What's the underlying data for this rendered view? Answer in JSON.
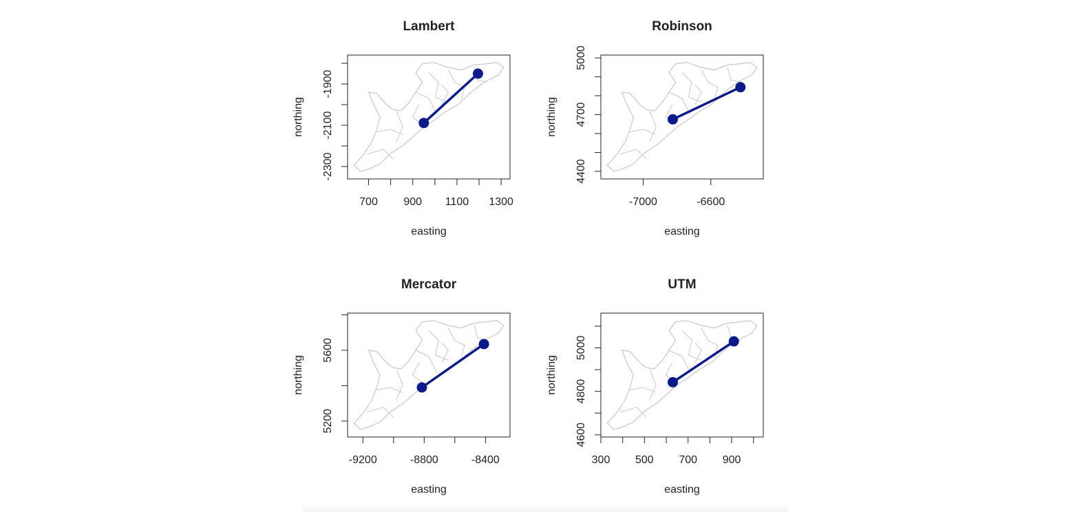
{
  "chart_data": [
    {
      "type": "scatter",
      "title": "Lambert",
      "xlabel": "easting",
      "ylabel": "northing",
      "xlim": [
        605,
        1340
      ],
      "ylim": [
        -2360,
        -1760
      ],
      "x_ticks": [
        700,
        800,
        900,
        1000,
        1100,
        1200,
        1300
      ],
      "x_tick_labels": [
        "700",
        "",
        "900",
        "",
        "1100",
        "",
        "1300"
      ],
      "y_ticks": [
        -1800,
        -1900,
        -2000,
        -2100,
        -2200,
        -2300
      ],
      "y_tick_labels": [
        "",
        "-1900",
        "",
        "-2100",
        "",
        "-2300"
      ],
      "series": [
        {
          "x": [
            950,
            1195
          ],
          "y": [
            -2089,
            -1850
          ]
        }
      ],
      "colors": {
        "route": "#0d1a8a",
        "boundaries": "#c8c8c8"
      },
      "grid": false
    },
    {
      "type": "scatter",
      "title": "Robinson",
      "xlabel": "easting",
      "ylabel": "northing",
      "xlim": [
        -7250,
        -6290
      ],
      "ylim": [
        4360,
        5015
      ],
      "x_ticks": [
        -7000,
        -6600
      ],
      "x_tick_labels": [
        "-7000",
        "-6600"
      ],
      "y_ticks": [
        4400,
        4500,
        4600,
        4700,
        4800,
        4900,
        5000
      ],
      "y_tick_labels": [
        "4400",
        "",
        "",
        "4700",
        "",
        "",
        "5000"
      ],
      "series": [
        {
          "x": [
            -6825,
            -6425
          ],
          "y": [
            4675,
            4845
          ]
        }
      ],
      "colors": {
        "route": "#0d1a8a",
        "boundaries": "#c8c8c8"
      },
      "grid": false
    },
    {
      "type": "scatter",
      "title": "Mercator",
      "xlabel": "easting",
      "ylabel": "northing",
      "xlim": [
        -9300,
        -8240
      ],
      "ylim": [
        5110,
        5810
      ],
      "x_ticks": [
        -9200,
        -9000,
        -8800,
        -8600,
        -8400
      ],
      "x_tick_labels": [
        "-9200",
        "",
        "-8800",
        "",
        "-8400"
      ],
      "y_ticks": [
        5200,
        5400,
        5600,
        5800
      ],
      "y_tick_labels": [
        "5200",
        "",
        "5600",
        ""
      ],
      "series": [
        {
          "x": [
            -8815,
            -8410
          ],
          "y": [
            5390,
            5635
          ]
        }
      ],
      "colors": {
        "route": "#0d1a8a",
        "boundaries": "#c8c8c8"
      },
      "grid": false
    },
    {
      "type": "scatter",
      "title": "UTM",
      "xlabel": "easting",
      "ylabel": "northing",
      "xlim": [
        300,
        1045
      ],
      "ylim": [
        4590,
        5160
      ],
      "x_ticks": [
        300,
        400,
        500,
        600,
        700,
        800,
        900,
        1000
      ],
      "x_tick_labels": [
        "300",
        "",
        "500",
        "",
        "700",
        "",
        "900",
        ""
      ],
      "y_ticks": [
        4600,
        4700,
        4800,
        4900,
        5000,
        5100
      ],
      "y_tick_labels": [
        "4600",
        "",
        "4800",
        "",
        "5000",
        ""
      ],
      "series": [
        {
          "x": [
            630,
            910
          ],
          "y": [
            4842,
            5030
          ]
        }
      ],
      "colors": {
        "route": "#0d1a8a",
        "boundaries": "#c8c8c8"
      },
      "grid": false
    }
  ]
}
